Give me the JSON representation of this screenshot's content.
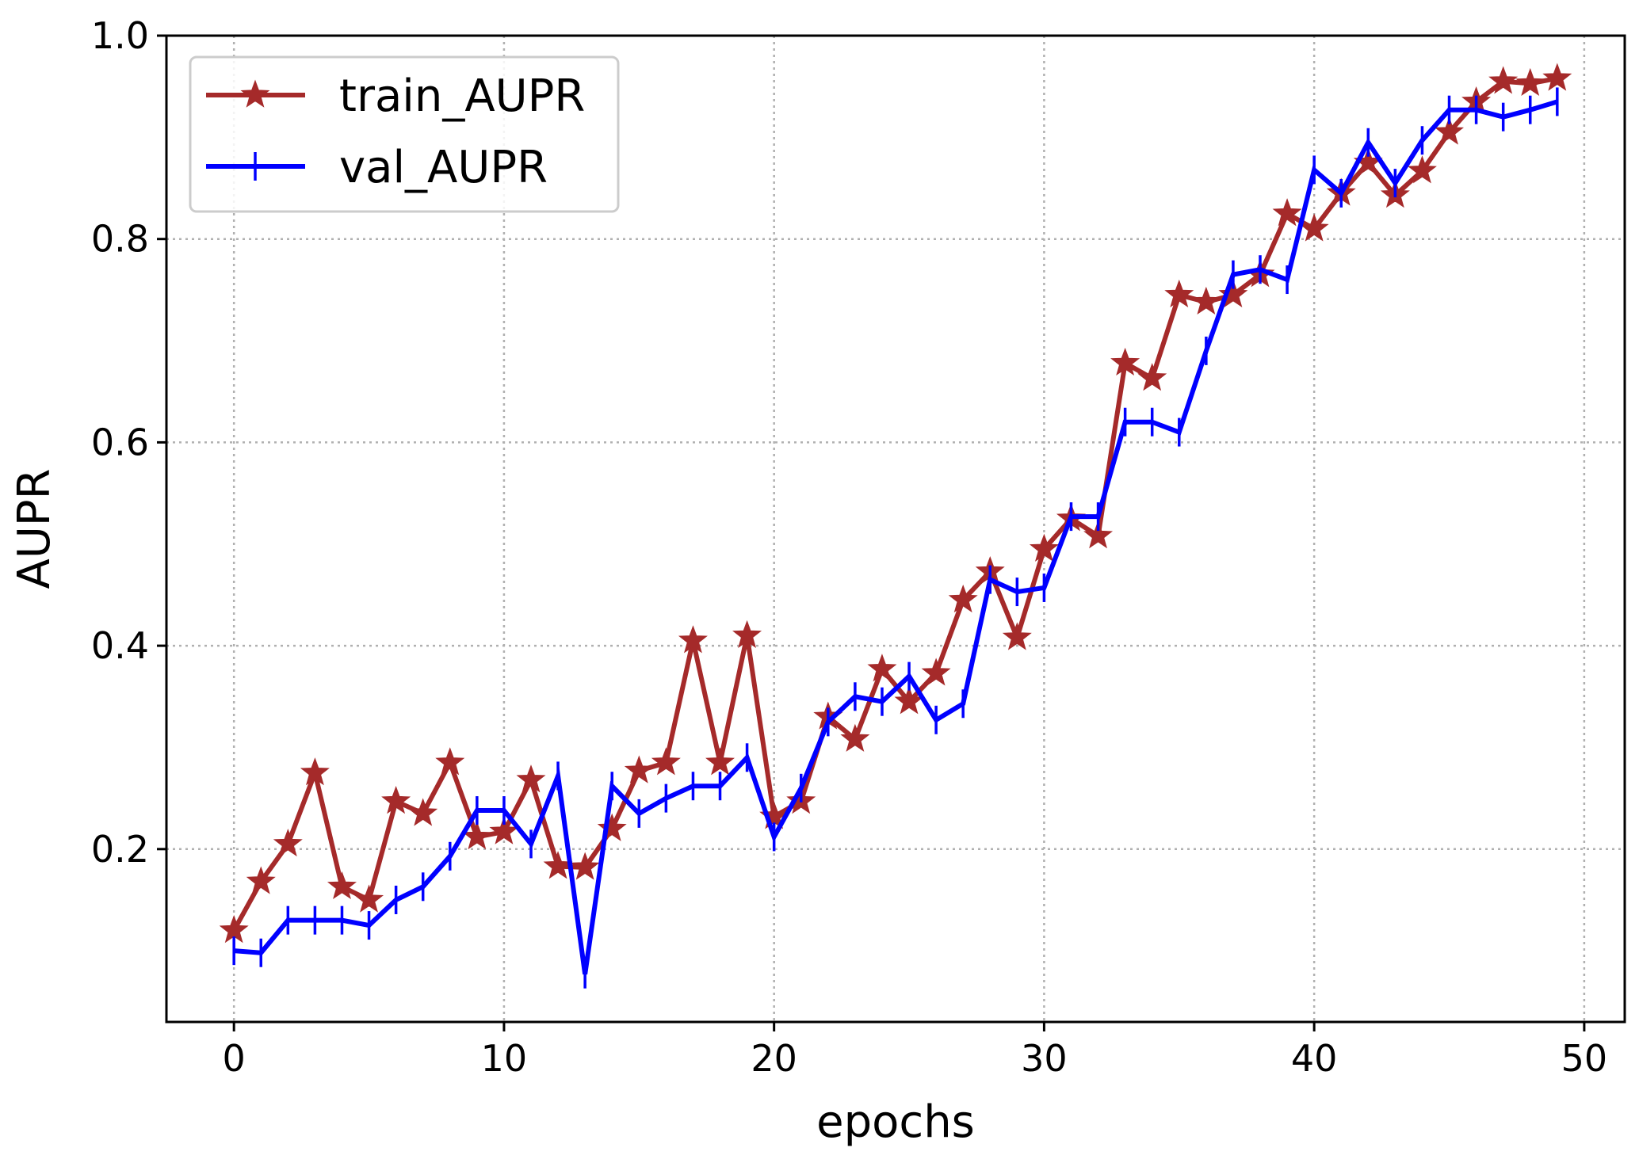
{
  "chart_data": {
    "type": "line",
    "title": "",
    "xlabel": "epochs",
    "ylabel": "AUPR",
    "xlim": [
      -2.5,
      51.5
    ],
    "ylim": [
      0.03,
      1.0
    ],
    "x_ticks": [
      0,
      10,
      20,
      30,
      40,
      50
    ],
    "x_tick_labels": [
      "0",
      "10",
      "20",
      "30",
      "40",
      "50"
    ],
    "y_ticks": [
      0.2,
      0.4,
      0.6,
      0.8,
      1.0
    ],
    "y_tick_labels": [
      "0.2",
      "0.4",
      "0.6",
      "0.8",
      "1.0"
    ],
    "grid": true,
    "grid_style": "dotted",
    "legend_position": "top-left",
    "x": [
      0,
      1,
      2,
      3,
      4,
      5,
      6,
      7,
      8,
      9,
      10,
      11,
      12,
      13,
      14,
      15,
      16,
      17,
      18,
      19,
      20,
      21,
      22,
      23,
      24,
      25,
      26,
      27,
      28,
      29,
      30,
      31,
      32,
      33,
      34,
      35,
      36,
      37,
      38,
      39,
      40,
      41,
      42,
      43,
      44,
      45,
      46,
      47,
      48,
      49
    ],
    "series": [
      {
        "name": "train_AUPR",
        "color": "#a52a2a",
        "marker": "star",
        "values": [
          0.12,
          0.168,
          0.205,
          0.275,
          0.163,
          0.15,
          0.247,
          0.235,
          0.285,
          0.212,
          0.217,
          0.268,
          0.183,
          0.182,
          0.22,
          0.277,
          0.285,
          0.405,
          0.285,
          0.41,
          0.232,
          0.247,
          0.33,
          0.308,
          0.377,
          0.345,
          0.373,
          0.445,
          0.473,
          0.408,
          0.495,
          0.525,
          0.508,
          0.678,
          0.663,
          0.745,
          0.738,
          0.745,
          0.765,
          0.825,
          0.81,
          0.845,
          0.875,
          0.843,
          0.867,
          0.905,
          0.935,
          0.955,
          0.953,
          0.958
        ]
      },
      {
        "name": "val_AUPR",
        "color": "#0000ff",
        "marker": "vline",
        "values": [
          0.1,
          0.098,
          0.13,
          0.13,
          0.13,
          0.125,
          0.15,
          0.163,
          0.193,
          0.238,
          0.238,
          0.205,
          0.272,
          0.077,
          0.262,
          0.235,
          0.25,
          0.262,
          0.262,
          0.29,
          0.212,
          0.26,
          0.325,
          0.35,
          0.345,
          0.37,
          0.327,
          0.343,
          0.465,
          0.453,
          0.457,
          0.527,
          0.527,
          0.62,
          0.62,
          0.61,
          0.69,
          0.765,
          0.77,
          0.76,
          0.868,
          0.845,
          0.895,
          0.855,
          0.897,
          0.927,
          0.927,
          0.92,
          0.927,
          0.935
        ]
      }
    ]
  }
}
